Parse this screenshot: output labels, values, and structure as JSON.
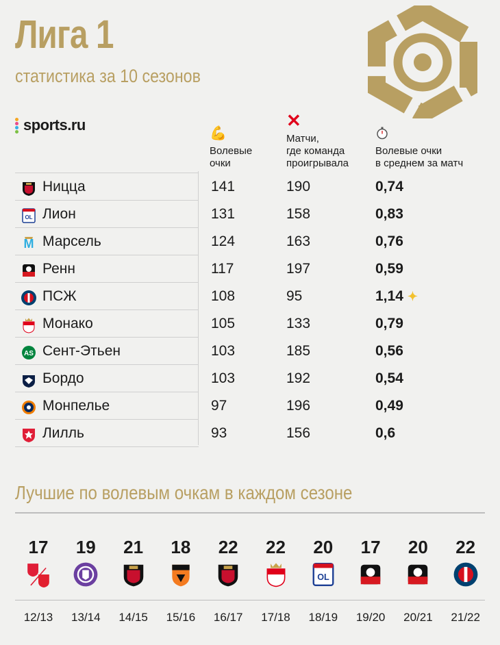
{
  "header": {
    "title": "Лига 1",
    "subtitle": "статистика за 10 сезонов",
    "brand": "sports.ru",
    "accent": "#b89f62"
  },
  "columns": {
    "points": {
      "icon": "flexed-biceps-icon",
      "label_1": "Волевые",
      "label_2": "очки"
    },
    "lost": {
      "icon": "cross-mark-icon",
      "label_1": "Матчи,",
      "label_2": "где команда",
      "label_3": "проигрывала"
    },
    "avg": {
      "icon": "stopwatch-icon",
      "label_1": "Волевые очки",
      "label_2": "в среднем за матч"
    }
  },
  "teams": [
    {
      "name": "Ницца",
      "points": "141",
      "lost": "190",
      "avg": "0,74",
      "badge": "nice",
      "color": "#c8102e"
    },
    {
      "name": "Лион",
      "points": "131",
      "lost": "158",
      "avg": "0,83",
      "badge": "lyon",
      "color": "#1c3f94"
    },
    {
      "name": "Марсель",
      "points": "124",
      "lost": "163",
      "avg": "0,76",
      "badge": "marseille",
      "color": "#2faee0"
    },
    {
      "name": "Ренн",
      "points": "117",
      "lost": "197",
      "avg": "0,59",
      "badge": "rennes",
      "color": "#d71920"
    },
    {
      "name": "ПСЖ",
      "points": "108",
      "lost": "95",
      "avg": "1,14",
      "badge": "psg",
      "color": "#004170",
      "star": true
    },
    {
      "name": "Монако",
      "points": "105",
      "lost": "133",
      "avg": "0,79",
      "badge": "monaco",
      "color": "#e0001a"
    },
    {
      "name": "Сент-Этьен",
      "points": "103",
      "lost": "185",
      "avg": "0,56",
      "badge": "saint-etienne",
      "color": "#00843d"
    },
    {
      "name": "Бордо",
      "points": "103",
      "lost": "192",
      "avg": "0,54",
      "badge": "bordeaux",
      "color": "#0b1f45"
    },
    {
      "name": "Монпелье",
      "points": "97",
      "lost": "196",
      "avg": "0,49",
      "badge": "montpellier",
      "color": "#0a2a5e"
    },
    {
      "name": "Лилль",
      "points": "93",
      "lost": "156",
      "avg": "0,6",
      "badge": "lille",
      "color": "#e01e37"
    }
  ],
  "best_section": {
    "title": "Лучшие по волевым очкам в каждом сезоне",
    "seasons": [
      {
        "value": "17",
        "season": "12/13",
        "crest": "lille-valenciennes",
        "color": "#e01e37"
      },
      {
        "value": "19",
        "season": "13/14",
        "crest": "toulouse",
        "color": "#6b3fa0"
      },
      {
        "value": "21",
        "season": "14/15",
        "crest": "nice",
        "color": "#c8102e"
      },
      {
        "value": "18",
        "season": "15/16",
        "crest": "lorient",
        "color": "#f47b20"
      },
      {
        "value": "22",
        "season": "16/17",
        "crest": "nice",
        "color": "#c8102e"
      },
      {
        "value": "22",
        "season": "17/18",
        "crest": "monaco",
        "color": "#e0001a"
      },
      {
        "value": "20",
        "season": "18/19",
        "crest": "lyon",
        "color": "#1c3f94"
      },
      {
        "value": "17",
        "season": "19/20",
        "crest": "rennes",
        "color": "#d71920"
      },
      {
        "value": "20",
        "season": "20/21",
        "crest": "rennes",
        "color": "#d71920"
      },
      {
        "value": "22",
        "season": "21/22",
        "crest": "psg",
        "color": "#004170"
      }
    ]
  }
}
